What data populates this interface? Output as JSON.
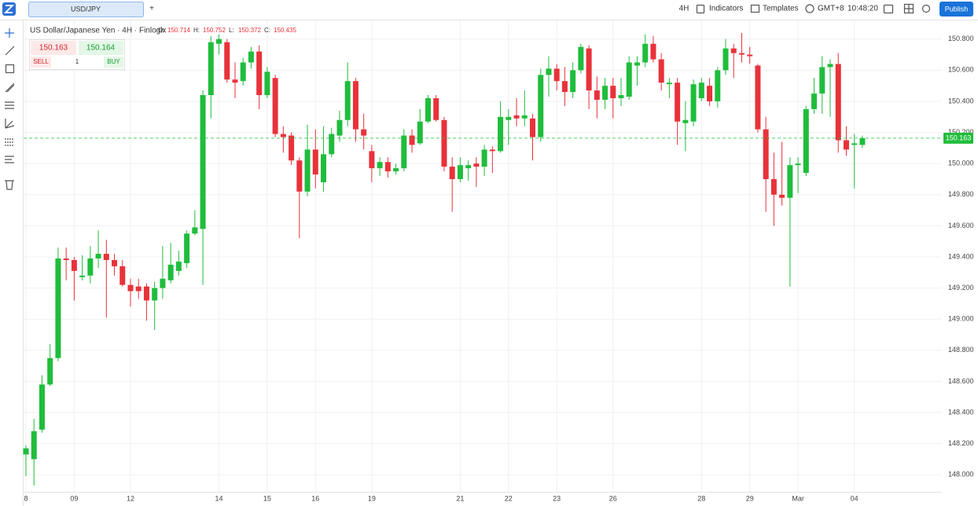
{
  "toolbar": {
    "tab": "USD/JPY",
    "add": "+",
    "interval": "4H",
    "indicators": "Indicators",
    "templates": "Templates",
    "timezone": "GMT+8",
    "time": "10:48:20",
    "publish": "Publish"
  },
  "legend": {
    "symbol": "US Dollar/Japanese Yen · 4H · Finlogix",
    "ohlc": [
      {
        "label": "O:",
        "value": "150.714"
      },
      {
        "label": "H:",
        "value": "150.752"
      },
      {
        "label": "L:",
        "value": "150.372"
      },
      {
        "label": "C:",
        "value": "150.435"
      }
    ]
  },
  "trade": {
    "sell_price": "150.163",
    "buy_price": "150.164",
    "sell": "SELL",
    "quantity": "1",
    "buy": "BUY"
  },
  "chart_data": {
    "type": "candlestick",
    "categories": [
      "8",
      null,
      null,
      null,
      null,
      null,
      "09",
      null,
      null,
      null,
      null,
      null,
      null,
      "12",
      null,
      null,
      null,
      null,
      null,
      null,
      null,
      null,
      null,
      null,
      "14",
      null,
      null,
      null,
      null,
      null,
      "15",
      null,
      null,
      null,
      null,
      null,
      "16",
      null,
      null,
      null,
      null,
      null,
      null,
      "19",
      null,
      null,
      null,
      null,
      null,
      null,
      null,
      null,
      null,
      null,
      "21",
      null,
      null,
      null,
      null,
      null,
      "22",
      null,
      null,
      null,
      null,
      null,
      "23",
      null,
      null,
      null,
      null,
      null,
      null,
      "26",
      null,
      null,
      null,
      null,
      null,
      null,
      null,
      null,
      null,
      null,
      "28",
      null,
      null,
      null,
      null,
      null,
      "29",
      null,
      null,
      null,
      null,
      null,
      "Mar",
      null,
      null,
      null,
      null,
      null,
      null,
      "04",
      null
    ],
    "open": [
      148.13,
      148.1,
      148.29,
      148.58,
      148.75,
      149.39,
      149.38,
      149.27,
      149.28,
      149.39,
      149.42,
      149.38,
      149.34,
      149.22,
      149.21,
      149.21,
      149.12,
      149.2,
      149.25,
      149.31,
      149.36,
      149.55,
      149.58,
      150.44,
      150.77,
      150.78,
      150.54,
      150.53,
      150.65,
      150.72,
      150.44,
      150.55,
      150.19,
      150.18,
      150.02,
      149.82,
      150.09,
      149.88,
      150.06,
      150.18,
      150.28,
      150.53,
      150.22,
      150.08,
      149.97,
      150.01,
      149.95,
      149.97,
      150.18,
      150.13,
      150.27,
      150.42,
      150.28,
      149.98,
      149.9,
      149.97,
      150.0,
      149.98,
      150.09,
      150.08,
      150.28,
      150.31,
      150.29,
      150.29,
      150.17,
      150.57,
      150.61,
      150.53,
      150.46,
      150.6,
      150.74,
      150.47,
      150.41,
      150.5,
      150.42,
      150.43,
      150.63,
      150.65,
      150.77,
      150.67,
      150.51,
      150.52,
      150.26,
      150.27,
      150.42,
      150.5,
      150.4,
      150.6,
      150.74,
      150.71,
      150.7,
      150.63,
      150.22,
      149.9,
      149.8,
      149.78,
      149.99,
      149.94,
      150.35,
      150.45,
      150.62,
      150.64,
      150.15,
      150.12,
      150.12
    ],
    "high": [
      148.19,
      148.36,
      148.64,
      148.84,
      149.46,
      149.46,
      149.4,
      149.41,
      149.47,
      149.57,
      149.51,
      149.42,
      149.38,
      149.26,
      149.26,
      149.23,
      149.24,
      149.47,
      149.49,
      149.44,
      149.57,
      149.7,
      150.47,
      150.82,
      150.83,
      150.8,
      150.65,
      150.68,
      150.75,
      150.76,
      150.62,
      150.57,
      150.24,
      150.2,
      150.04,
      150.25,
      150.22,
      150.24,
      150.23,
      150.34,
      150.65,
      150.55,
      150.32,
      150.12,
      150.04,
      150.04,
      150.0,
      150.22,
      150.22,
      150.35,
      150.44,
      150.44,
      150.3,
      150.04,
      150.04,
      150.02,
      150.04,
      150.12,
      150.11,
      150.4,
      150.35,
      150.42,
      150.47,
      150.32,
      150.61,
      150.69,
      150.64,
      150.62,
      150.65,
      150.77,
      150.76,
      150.56,
      150.55,
      150.55,
      150.55,
      150.69,
      150.69,
      150.83,
      150.82,
      150.71,
      150.55,
      150.55,
      150.4,
      150.54,
      150.55,
      150.55,
      150.62,
      150.8,
      150.77,
      150.84,
      150.75,
      150.64,
      150.3,
      150.07,
      150.14,
      150.04,
      150.04,
      150.37,
      150.55,
      150.69,
      150.67,
      150.71,
      150.24,
      150.19,
      150.18
    ],
    "low": [
      147.99,
      147.93,
      148.27,
      148.57,
      148.73,
      149.25,
      149.12,
      149.25,
      149.23,
      149.33,
      149.01,
      149.28,
      149.21,
      149.08,
      149.13,
      148.99,
      148.93,
      149.13,
      149.23,
      149.28,
      149.33,
      149.54,
      149.22,
      150.29,
      150.7,
      150.52,
      150.42,
      150.5,
      150.61,
      150.35,
      150.42,
      150.17,
      150.07,
      149.99,
      149.52,
      149.79,
      149.84,
      149.82,
      150.04,
      150.14,
      150.24,
      150.14,
      150.09,
      149.88,
      149.92,
      149.91,
      149.93,
      149.95,
      150.07,
      150.12,
      150.26,
      150.27,
      149.95,
      149.69,
      149.88,
      149.89,
      149.85,
      149.92,
      149.94,
      150.07,
      150.12,
      150.24,
      150.24,
      150.02,
      150.14,
      150.43,
      150.47,
      150.37,
      150.42,
      150.58,
      150.35,
      150.29,
      150.35,
      150.29,
      150.37,
      150.41,
      150.5,
      150.62,
      150.65,
      150.47,
      150.42,
      150.12,
      150.08,
      150.24,
      150.4,
      150.37,
      150.36,
      150.57,
      150.55,
      150.65,
      150.64,
      150.2,
      149.69,
      149.6,
      149.73,
      149.21,
      149.81,
      149.92,
      150.32,
      150.32,
      150.3,
      150.07,
      150.05,
      149.84,
      150.1
    ],
    "close": [
      148.17,
      148.28,
      148.58,
      148.75,
      149.39,
      149.38,
      149.31,
      149.28,
      149.39,
      149.42,
      149.38,
      149.34,
      149.22,
      149.18,
      149.18,
      149.12,
      149.2,
      149.26,
      149.35,
      149.37,
      149.55,
      149.59,
      150.44,
      150.78,
      150.8,
      150.54,
      150.52,
      150.65,
      150.72,
      150.44,
      150.59,
      150.19,
      150.17,
      150.02,
      149.82,
      150.09,
      149.93,
      150.06,
      150.19,
      150.28,
      150.53,
      150.22,
      150.18,
      149.97,
      150.01,
      149.95,
      149.97,
      150.18,
      150.12,
      150.27,
      150.42,
      150.28,
      149.98,
      149.9,
      149.99,
      149.99,
      149.98,
      150.09,
      150.08,
      150.3,
      150.3,
      150.29,
      150.31,
      150.17,
      150.57,
      150.61,
      150.53,
      150.46,
      150.6,
      150.75,
      150.47,
      150.41,
      150.5,
      150.42,
      150.44,
      150.65,
      150.65,
      150.77,
      150.67,
      150.52,
      150.52,
      150.27,
      150.28,
      150.51,
      150.52,
      150.4,
      150.6,
      150.74,
      150.71,
      150.7,
      150.69,
      150.22,
      149.9,
      149.8,
      149.78,
      149.99,
      150.0,
      150.35,
      150.45,
      150.62,
      150.64,
      150.15,
      150.09,
      150.13,
      150.163
    ],
    "up_color": "#1fbd3c",
    "down_color": "#e8323a",
    "ylim": [
      147.89,
      150.92
    ],
    "yticks": [
      {
        "value": 148.0,
        "label": "148.000"
      },
      {
        "value": 148.2,
        "label": "148.200"
      },
      {
        "value": 148.4,
        "label": "148.400"
      },
      {
        "value": 148.6,
        "label": "148.600"
      },
      {
        "value": 148.8,
        "label": "148.800"
      },
      {
        "value": 149.0,
        "label": "149.000"
      },
      {
        "value": 149.2,
        "label": "149.200"
      },
      {
        "value": 149.4,
        "label": "149.400"
      },
      {
        "value": 149.6,
        "label": "149.600"
      },
      {
        "value": 149.8,
        "label": "149.800"
      },
      {
        "value": 150.0,
        "label": "150.000"
      },
      {
        "value": 150.2,
        "label": "150.200"
      },
      {
        "value": 150.4,
        "label": "150.400"
      },
      {
        "value": 150.6,
        "label": "150.600"
      },
      {
        "value": 150.8,
        "label": "150.800"
      }
    ],
    "grid": true,
    "last_price": {
      "value": 150.163,
      "label": "150.163"
    }
  }
}
